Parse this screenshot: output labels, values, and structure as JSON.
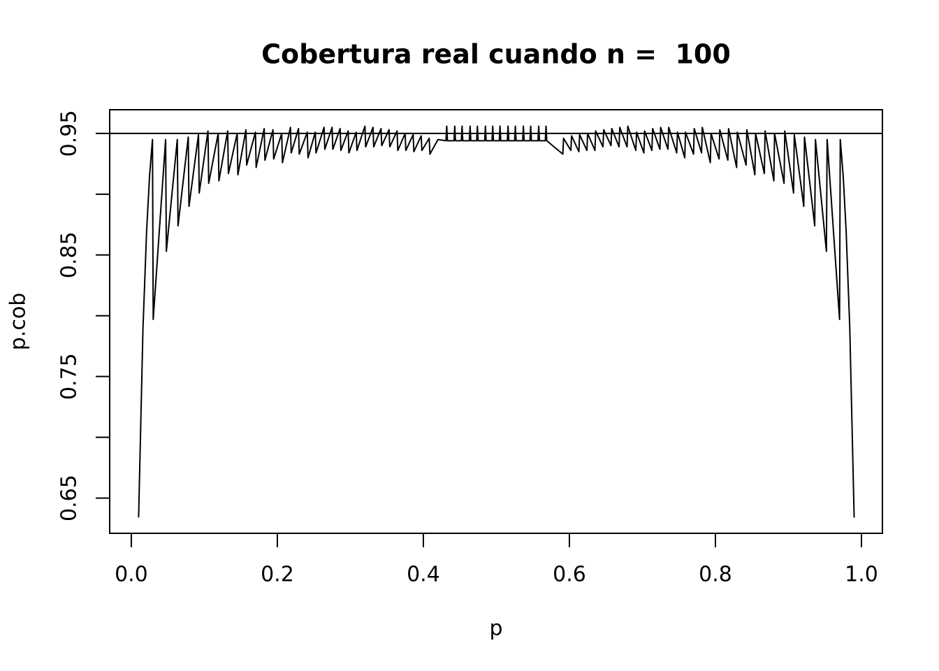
{
  "chart_data": {
    "type": "line",
    "title": "Cobertura real cuando n =  100",
    "xlabel": "p",
    "ylabel": "p.cob",
    "color": "#000000",
    "xlim": [
      -0.0296,
      1.0287
    ],
    "ylim": [
      0.621,
      0.9695
    ],
    "xticks": [
      {
        "value": 0,
        "label": "0.0"
      },
      0.2,
      0.4,
      0.6,
      0.8,
      {
        "value": 1,
        "label": "1.0"
      }
    ],
    "yticks": [
      0.65,
      0.75,
      0.85,
      0.95
    ],
    "yminor_ticks": [
      0.7,
      0.8,
      0.9
    ],
    "hline": 0.95,
    "x": [
      0.01,
      0.016,
      0.021,
      0.025,
      0.029,
      0.03,
      0.047,
      0.048,
      0.063,
      0.064,
      0.078,
      0.079,
      0.092,
      0.093,
      0.105,
      0.106,
      0.119,
      0.12,
      0.132,
      0.133,
      0.145,
      0.146,
      0.157,
      0.158,
      0.17,
      0.171,
      0.182,
      0.183,
      0.194,
      0.195,
      0.206,
      0.207,
      0.218,
      0.219,
      0.229,
      0.23,
      0.241,
      0.242,
      0.252,
      0.253,
      0.264,
      0.265,
      0.275,
      0.276,
      0.286,
      0.287,
      0.297,
      0.298,
      0.308,
      0.309,
      0.32,
      0.321,
      0.331,
      0.332,
      0.342,
      0.343,
      0.353,
      0.354,
      0.364,
      0.365,
      0.375,
      0.376,
      0.386,
      0.387,
      0.397,
      0.398,
      0.408,
      0.409,
      0.42,
      0.431,
      0.432,
      0.433,
      0.442,
      0.443,
      0.444,
      0.452,
      0.453,
      0.454,
      0.463,
      0.464,
      0.465,
      0.473,
      0.474,
      0.475,
      0.484,
      0.485,
      0.486,
      0.494,
      0.495,
      0.496,
      0.504,
      0.505,
      0.506,
      0.515,
      0.516,
      0.517,
      0.525,
      0.526,
      0.527,
      0.536,
      0.537,
      0.538,
      0.546,
      0.547,
      0.548,
      0.557,
      0.558,
      0.559,
      0.567,
      0.568,
      0.569,
      0.591,
      0.592,
      0.602,
      0.603,
      0.613,
      0.614,
      0.624,
      0.625,
      0.635,
      0.636,
      0.646,
      0.647,
      0.657,
      0.658,
      0.668,
      0.669,
      0.679,
      0.68,
      0.691,
      0.692,
      0.702,
      0.703,
      0.713,
      0.714,
      0.724,
      0.725,
      0.735,
      0.736,
      0.747,
      0.748,
      0.758,
      0.759,
      0.77,
      0.771,
      0.781,
      0.782,
      0.793,
      0.794,
      0.805,
      0.806,
      0.817,
      0.818,
      0.829,
      0.83,
      0.842,
      0.843,
      0.854,
      0.855,
      0.867,
      0.868,
      0.88,
      0.881,
      0.894,
      0.895,
      0.907,
      0.908,
      0.921,
      0.922,
      0.936,
      0.937,
      0.952,
      0.953,
      0.97,
      0.971,
      0.975,
      0.979,
      0.984,
      0.99
    ],
    "values": [
      0.634,
      0.79,
      0.87,
      0.915,
      0.945,
      0.797,
      0.945,
      0.853,
      0.945,
      0.874,
      0.947,
      0.89,
      0.949,
      0.901,
      0.952,
      0.909,
      0.95,
      0.911,
      0.952,
      0.917,
      0.95,
      0.916,
      0.953,
      0.924,
      0.951,
      0.922,
      0.954,
      0.928,
      0.953,
      0.929,
      0.95,
      0.926,
      0.955,
      0.934,
      0.954,
      0.933,
      0.951,
      0.93,
      0.951,
      0.934,
      0.955,
      0.937,
      0.955,
      0.937,
      0.954,
      0.936,
      0.952,
      0.934,
      0.951,
      0.936,
      0.956,
      0.939,
      0.955,
      0.939,
      0.954,
      0.94,
      0.953,
      0.939,
      0.952,
      0.936,
      0.95,
      0.936,
      0.949,
      0.935,
      0.948,
      0.936,
      0.946,
      0.933,
      0.945,
      0.944,
      0.956,
      0.944,
      0.944,
      0.956,
      0.944,
      0.944,
      0.956,
      0.944,
      0.944,
      0.956,
      0.944,
      0.944,
      0.956,
      0.944,
      0.944,
      0.956,
      0.944,
      0.944,
      0.956,
      0.944,
      0.944,
      0.956,
      0.944,
      0.944,
      0.956,
      0.944,
      0.944,
      0.956,
      0.944,
      0.944,
      0.956,
      0.944,
      0.944,
      0.956,
      0.944,
      0.944,
      0.956,
      0.944,
      0.944,
      0.956,
      0.944,
      0.933,
      0.946,
      0.936,
      0.948,
      0.935,
      0.949,
      0.936,
      0.95,
      0.936,
      0.952,
      0.939,
      0.953,
      0.94,
      0.954,
      0.939,
      0.955,
      0.939,
      0.956,
      0.936,
      0.951,
      0.934,
      0.952,
      0.936,
      0.954,
      0.937,
      0.955,
      0.937,
      0.955,
      0.934,
      0.951,
      0.93,
      0.951,
      0.933,
      0.954,
      0.934,
      0.955,
      0.926,
      0.95,
      0.929,
      0.953,
      0.928,
      0.954,
      0.922,
      0.951,
      0.924,
      0.953,
      0.916,
      0.95,
      0.917,
      0.952,
      0.911,
      0.95,
      0.909,
      0.952,
      0.901,
      0.949,
      0.89,
      0.947,
      0.874,
      0.945,
      0.853,
      0.945,
      0.797,
      0.945,
      0.915,
      0.87,
      0.79,
      0.634
    ]
  }
}
